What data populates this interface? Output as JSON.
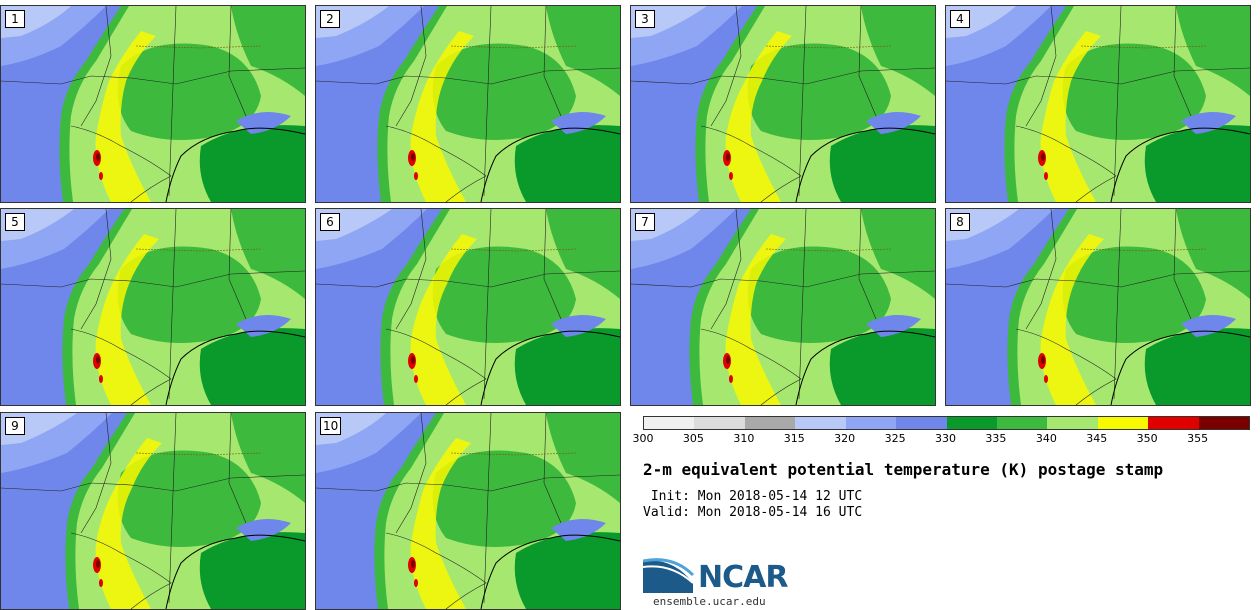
{
  "panels": [
    {
      "label": "1"
    },
    {
      "label": "2"
    },
    {
      "label": "3"
    },
    {
      "label": "4"
    },
    {
      "label": "5"
    },
    {
      "label": "6"
    },
    {
      "label": "7"
    },
    {
      "label": "8"
    },
    {
      "label": "9"
    },
    {
      "label": "10"
    }
  ],
  "colorbar": {
    "ticks": [
      "300",
      "305",
      "310",
      "315",
      "320",
      "325",
      "330",
      "335",
      "340",
      "345",
      "350",
      "355"
    ],
    "colors": [
      "#f0f0f0",
      "#dcdcdc",
      "#a9a9a9",
      "#b9c9f7",
      "#8ea6f3",
      "#6f86ea",
      "#0a9a2c",
      "#3dba3d",
      "#a6e86f",
      "#f8f800",
      "#e00000",
      "#7a0000"
    ]
  },
  "title": "2-m equivalent potential temperature (K) postage stamp",
  "init_text": " Init: Mon 2018-05-14 12 UTC",
  "valid_text": "Valid: Mon 2018-05-14 16 UTC",
  "logo": {
    "name": "NCAR",
    "url": "ensemble.ucar.edu"
  },
  "map_colors": {
    "cold_lt": "#b9c9f7",
    "cold_md": "#8ea6f3",
    "cold_dk": "#6f86ea",
    "green_dk": "#0a9a2c",
    "green_md": "#3dba3d",
    "green_lt": "#a6e86f",
    "yellow": "#f8f800",
    "red": "#e00000",
    "darkred": "#7a0000"
  }
}
